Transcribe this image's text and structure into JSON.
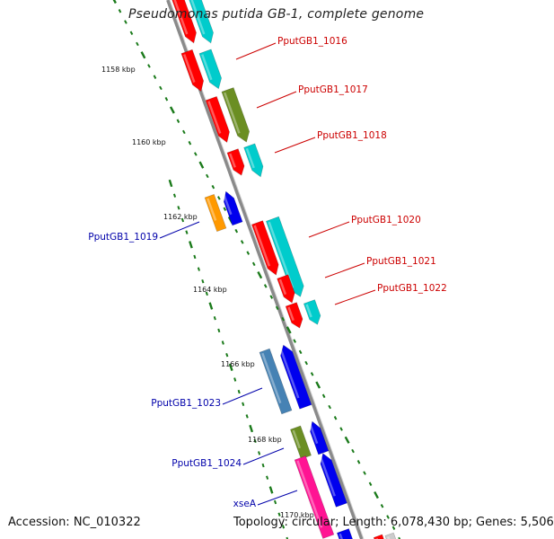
{
  "header": {
    "title": "Pseudomonas putida GB-1, complete genome"
  },
  "footer": {
    "accession": "Accession: NC_010322",
    "topology": "Topology: circular;",
    "length": "Length: 6,078,430 bp;",
    "genes": "Genes: 5,506"
  },
  "colors": {
    "backbone": "#8a8a8a",
    "forward_label": "#cc0000",
    "reverse_label": "#0000aa",
    "tick": "#1a7a1a"
  },
  "ticks": [
    {
      "label": "1158 kbp"
    },
    {
      "label": "1160 kbp"
    },
    {
      "label": "1162 kbp"
    },
    {
      "label": "1164 kbp"
    },
    {
      "label": "1166 kbp"
    },
    {
      "label": "1168 kbp"
    },
    {
      "label": "1170 kbp"
    }
  ],
  "labels": [
    {
      "name": "PputGB1_1016",
      "strand": "forward"
    },
    {
      "name": "PputGB1_1017",
      "strand": "forward"
    },
    {
      "name": "PputGB1_1018",
      "strand": "forward"
    },
    {
      "name": "PputGB1_1020",
      "strand": "forward"
    },
    {
      "name": "PputGB1_1021",
      "strand": "forward"
    },
    {
      "name": "PputGB1_1022",
      "strand": "forward"
    },
    {
      "name": "PputGB1_1019",
      "strand": "reverse"
    },
    {
      "name": "PputGB1_1023",
      "strand": "reverse"
    },
    {
      "name": "PputGB1_1024",
      "strand": "reverse"
    },
    {
      "name": "xseA",
      "strand": "reverse"
    }
  ],
  "features": [
    {
      "color": "#ff0000",
      "strand": "forward"
    },
    {
      "color": "#00cccc",
      "strand": "forward"
    },
    {
      "color": "#ff0000",
      "strand": "forward"
    },
    {
      "color": "#00cccc",
      "strand": "forward"
    },
    {
      "color": "#ff0000",
      "strand": "forward"
    },
    {
      "color": "#6b8e23",
      "strand": "forward"
    },
    {
      "color": "#ff0000",
      "strand": "forward"
    },
    {
      "color": "#00cccc",
      "strand": "forward"
    },
    {
      "color": "#ff0000",
      "strand": "forward"
    },
    {
      "color": "#00cccc",
      "strand": "forward"
    },
    {
      "color": "#ff0000",
      "strand": "forward"
    },
    {
      "color": "#ff0000",
      "strand": "forward"
    },
    {
      "color": "#00cccc",
      "strand": "forward"
    },
    {
      "color": "#ff9900",
      "strand": "reverse"
    },
    {
      "color": "#0000ee",
      "strand": "reverse"
    },
    {
      "color": "#4682b4",
      "strand": "reverse"
    },
    {
      "color": "#0000ee",
      "strand": "reverse"
    },
    {
      "color": "#6b8e23",
      "strand": "reverse"
    },
    {
      "color": "#0000ee",
      "strand": "reverse"
    },
    {
      "color": "#ff1493",
      "strand": "reverse"
    },
    {
      "color": "#0000ee",
      "strand": "reverse"
    },
    {
      "color": "#0000ee",
      "strand": "reverse"
    },
    {
      "color": "#ff0000",
      "strand": "forward"
    },
    {
      "color": "#cccccc",
      "strand": "forward"
    }
  ]
}
